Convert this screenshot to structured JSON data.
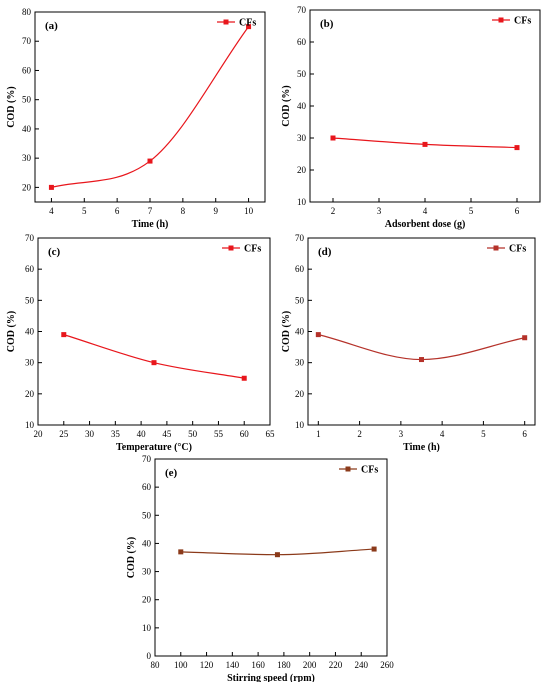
{
  "chart_data": [
    {
      "id": "a",
      "type": "line",
      "panel_label": "(a)",
      "xlabel": "Time (h)",
      "ylabel": "COD (%)",
      "xlim": [
        3.5,
        10.5
      ],
      "ylim": [
        15,
        80
      ],
      "xticks": [
        4,
        5,
        6,
        7,
        8,
        9,
        10
      ],
      "yticks": [
        20,
        30,
        40,
        50,
        60,
        70,
        80
      ],
      "series": [
        {
          "name": "CFs",
          "x": [
            4,
            7,
            10
          ],
          "y": [
            20,
            29,
            75
          ],
          "color": "#e8161c"
        }
      ],
      "legend": "top-right",
      "grid": false
    },
    {
      "id": "b",
      "type": "line",
      "panel_label": "(b)",
      "xlabel": "Adsorbent dose (g)",
      "ylabel": "COD (%)",
      "xlim": [
        1.5,
        6.5
      ],
      "ylim": [
        10,
        70
      ],
      "xticks": [
        2,
        3,
        4,
        5,
        6
      ],
      "yticks": [
        10,
        20,
        30,
        40,
        50,
        60,
        70
      ],
      "series": [
        {
          "name": "CFs",
          "x": [
            2,
            4,
            6
          ],
          "y": [
            30,
            28,
            27
          ],
          "color": "#e8161c"
        }
      ],
      "legend": "top-right",
      "grid": false
    },
    {
      "id": "c",
      "type": "line",
      "panel_label": "(c)",
      "xlabel": "Temperature (°C)",
      "ylabel": "COD (%)",
      "xlim": [
        20,
        65
      ],
      "ylim": [
        10,
        70
      ],
      "xticks": [
        20,
        25,
        30,
        35,
        40,
        45,
        50,
        55,
        60,
        65
      ],
      "yticks": [
        10,
        20,
        30,
        40,
        50,
        60,
        70
      ],
      "series": [
        {
          "name": "CFs",
          "x": [
            25,
            42.5,
            60
          ],
          "y": [
            39,
            30,
            25
          ],
          "color": "#e8161c"
        }
      ],
      "legend": "top-right",
      "grid": false
    },
    {
      "id": "d",
      "type": "line",
      "panel_label": "(d)",
      "xlabel": "Time (h)",
      "ylabel": "COD (%)",
      "xlim": [
        0.75,
        6.25
      ],
      "ylim": [
        10,
        70
      ],
      "xticks": [
        1,
        2,
        3,
        4,
        5,
        6
      ],
      "yticks": [
        10,
        20,
        30,
        40,
        50,
        60,
        70
      ],
      "series": [
        {
          "name": "CFs",
          "x": [
            1,
            3.5,
            6
          ],
          "y": [
            39,
            31,
            38
          ],
          "color": "#b5322a"
        }
      ],
      "legend": "top-right",
      "grid": false
    },
    {
      "id": "e",
      "type": "line",
      "panel_label": "(e)",
      "xlabel": "Stirring speed (rpm)",
      "ylabel": "COD (%)",
      "xlim": [
        80,
        260
      ],
      "ylim": [
        0,
        70
      ],
      "xticks": [
        80,
        100,
        120,
        140,
        160,
        180,
        200,
        220,
        240,
        260
      ],
      "yticks": [
        0,
        10,
        20,
        30,
        40,
        50,
        60,
        70
      ],
      "series": [
        {
          "name": "CFs",
          "x": [
            100,
            175,
            250
          ],
          "y": [
            37,
            36,
            38
          ],
          "color": "#8b3a1a"
        }
      ],
      "legend": "top-right",
      "grid": false
    }
  ]
}
